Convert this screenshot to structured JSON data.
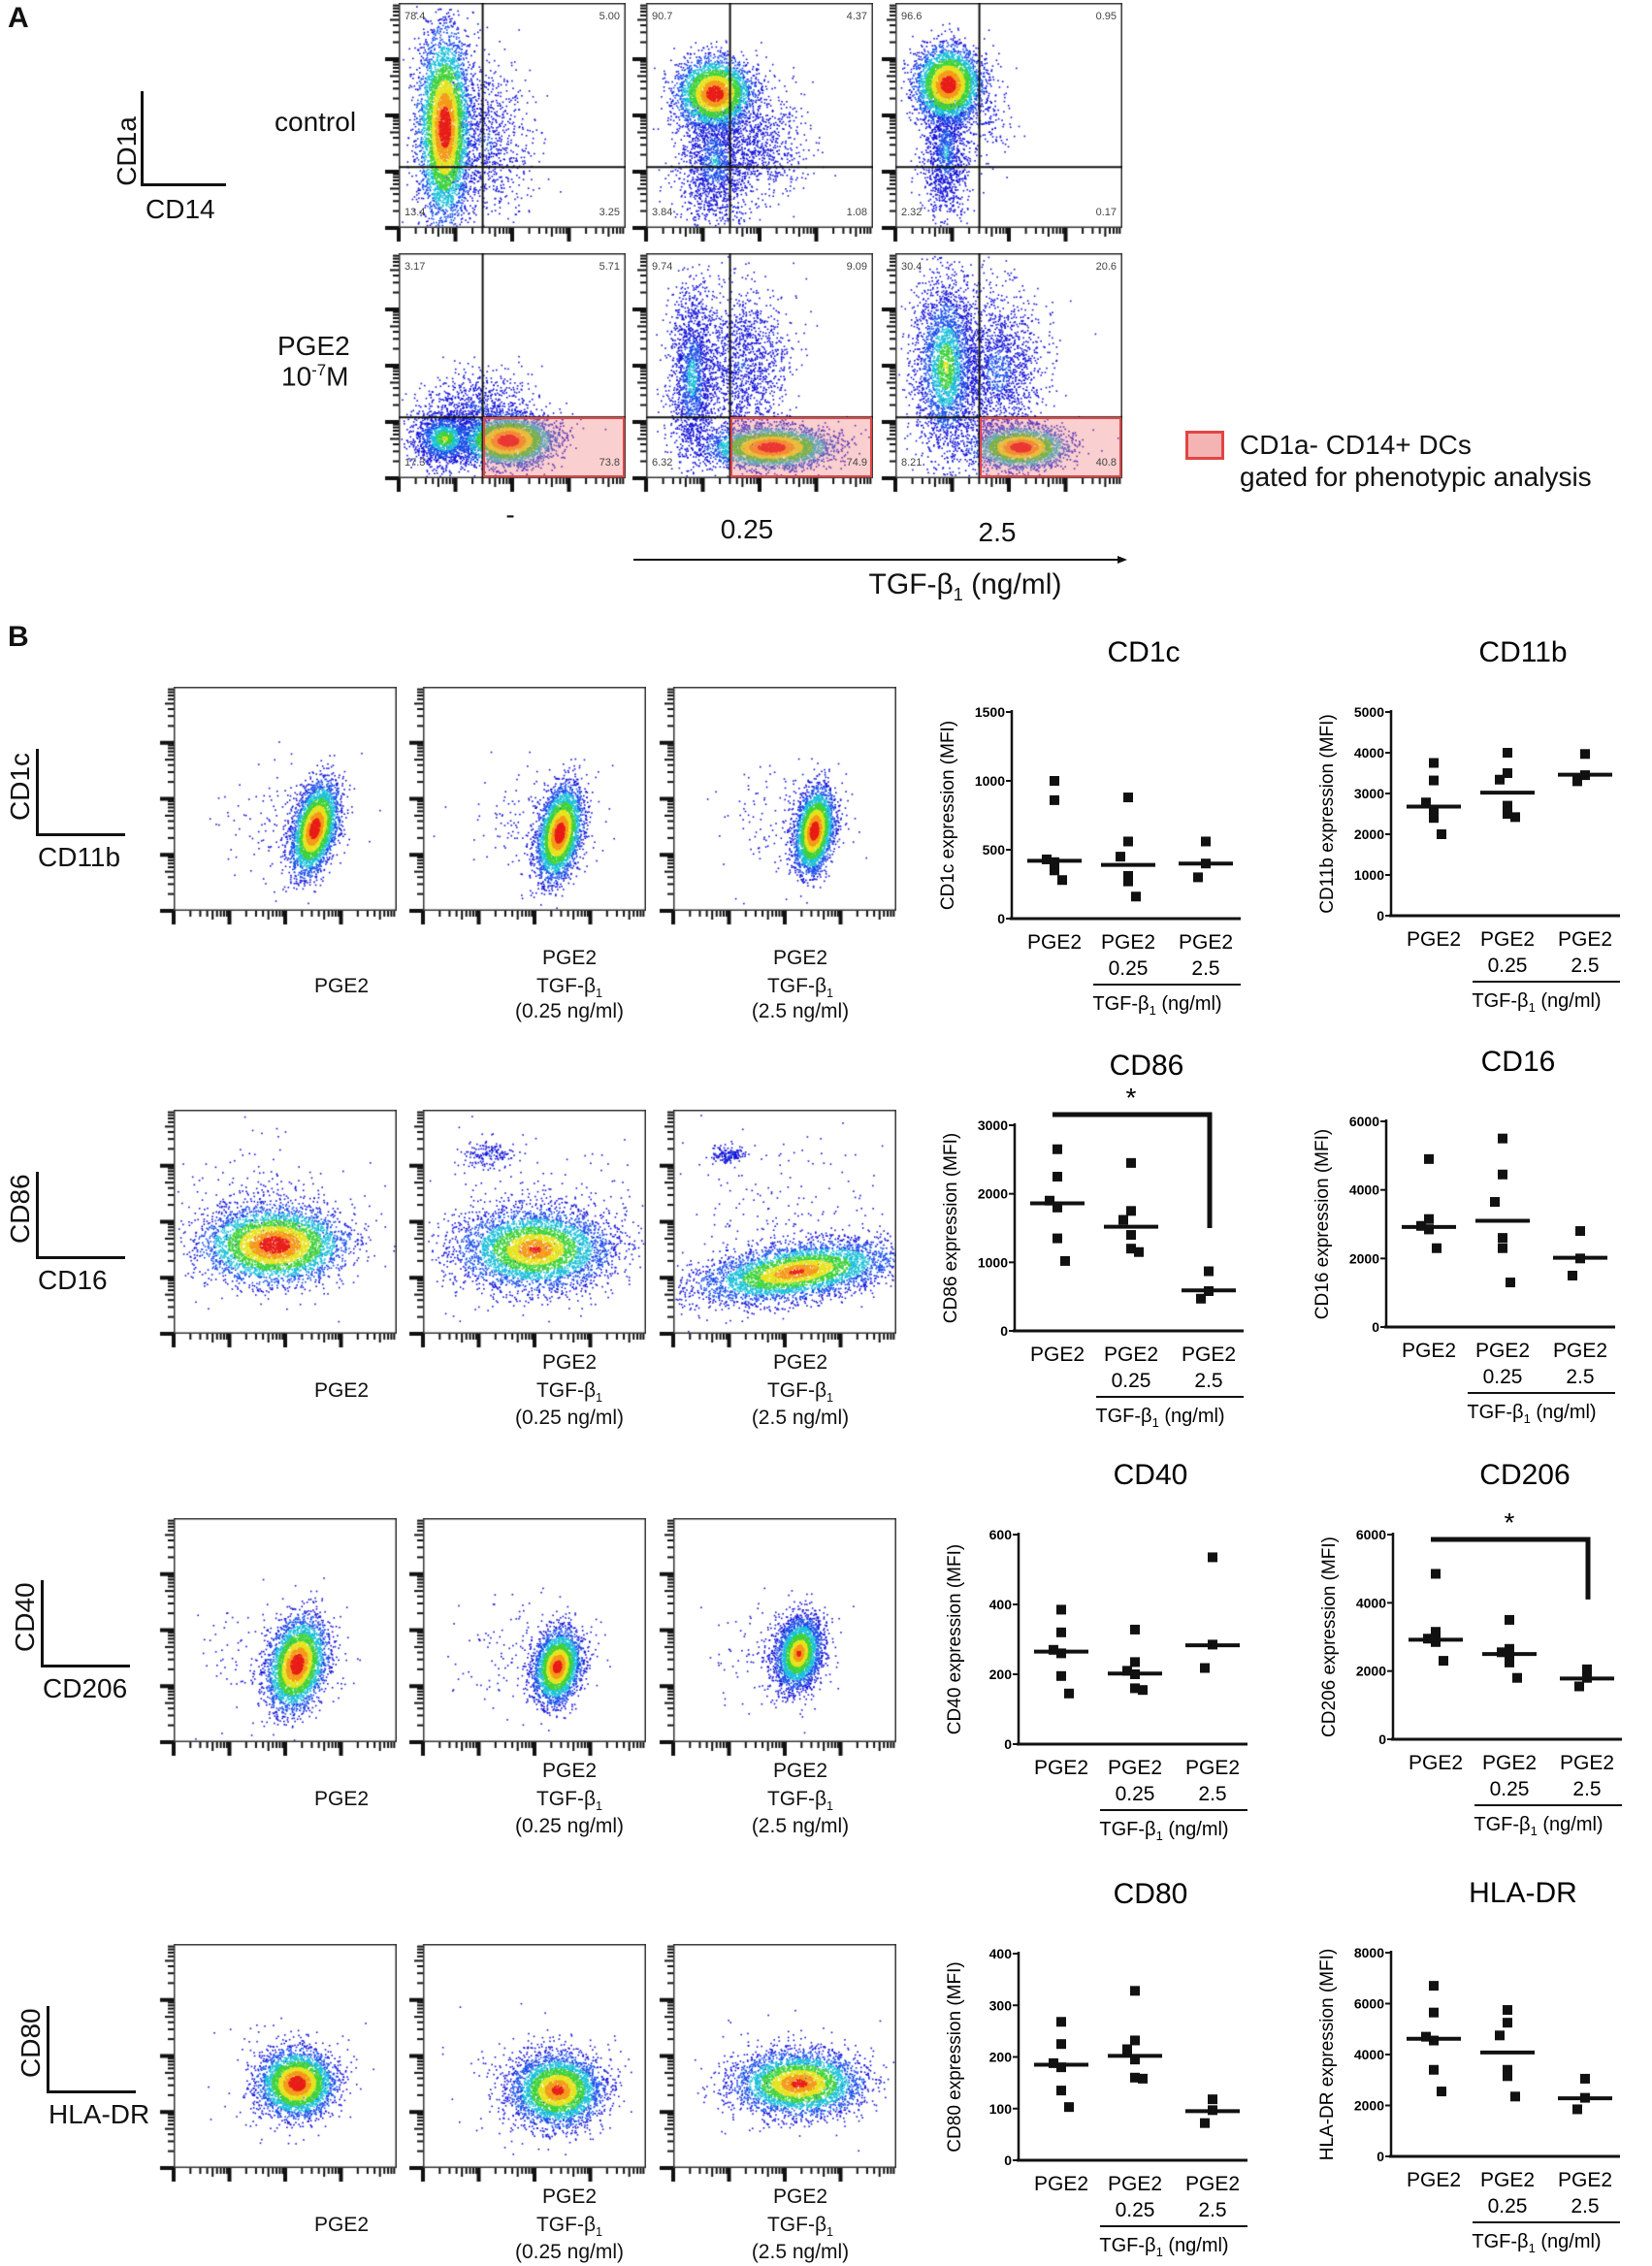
{
  "figure": {
    "panel_a_label": "A",
    "panel_b_label": "B"
  },
  "panel_a": {
    "axis_y": "CD1a",
    "axis_x": "CD14",
    "rows": [
      {
        "label": "control",
        "quadrants": [
          [
            "78.4",
            "5.00",
            "13.4",
            "3.25"
          ],
          [
            "90.7",
            "4.37",
            "3.84",
            "1.08"
          ],
          [
            "96.6",
            "0.95",
            "2.32",
            "0.17"
          ]
        ]
      },
      {
        "label": "PGE2",
        "conc_base": "10",
        "conc_exp": "-7",
        "conc_unit": "M",
        "quadrants": [
          [
            "3.17",
            "5.71",
            "17.3",
            "73.8"
          ],
          [
            "9.74",
            "9.09",
            "6.32",
            "74.9"
          ],
          [
            "30.4",
            "20.6",
            "8.21",
            "40.8"
          ]
        ]
      }
    ],
    "columns": [
      "-",
      "0.25",
      "2.5"
    ],
    "tgf": {
      "text": "TGF-β",
      "sub": "1",
      "unit": " (ng/ml)"
    },
    "legend": {
      "line1": "CD1a- CD14+ DCs",
      "line2": "gated for phenotypic analysis",
      "color": "#f4b4b4",
      "border": "#e24444"
    }
  },
  "panel_b": {
    "plot_labels": [
      {
        "l1": "PGE2"
      },
      {
        "l1": "PGE2",
        "l2": "TGF-β",
        "sub": "1",
        "l3": "(0.25 ng/ml)"
      },
      {
        "l1": "PGE2",
        "l2": "TGF-β",
        "sub": "1",
        "l3": "(2.5 ng/ml)"
      }
    ],
    "rows": [
      {
        "axis_y": "CD1c",
        "axis_x": "CD11b"
      },
      {
        "axis_y": "CD86",
        "axis_x": "CD16"
      },
      {
        "axis_y": "CD40",
        "axis_x": "CD206"
      },
      {
        "axis_y": "CD80",
        "axis_x": "HLA-DR"
      }
    ]
  },
  "chart_data": [
    {
      "type": "scatter",
      "title": "CD1c",
      "ylabel": "CD1c expression (MFI)",
      "ylim": [
        0,
        1500
      ],
      "yticks": [
        "0",
        "500",
        "1000",
        "1500"
      ],
      "categories": [
        {
          "l1": "PGE2",
          "l2": ""
        },
        {
          "l1": "PGE2",
          "l2": "0.25"
        },
        {
          "l1": "PGE2",
          "l2": "2.5"
        }
      ],
      "xgroup": {
        "text": "TGF-β",
        "sub": "1",
        "unit": " (ng/ml)"
      },
      "values": [
        [
          1000,
          860,
          430,
          410,
          350,
          280
        ],
        [
          880,
          560,
          450,
          310,
          270,
          160
        ],
        [
          560,
          400,
          300
        ]
      ],
      "medians": [
        420,
        390,
        400
      ],
      "significance": null
    },
    {
      "type": "scatter",
      "title": "CD11b",
      "ylabel": "CD11b expression (MFI)",
      "ylim": [
        0,
        5000
      ],
      "yticks": [
        "0",
        "1000",
        "2000",
        "3000",
        "4000",
        "5000"
      ],
      "categories": [
        {
          "l1": "PGE2",
          "l2": ""
        },
        {
          "l1": "PGE2",
          "l2": "0.25"
        },
        {
          "l1": "PGE2",
          "l2": "2.5"
        }
      ],
      "xgroup": {
        "text": "TGF-β",
        "sub": "1",
        "unit": " (ng/ml)"
      },
      "values": [
        [
          3750,
          3320,
          2780,
          2560,
          2400,
          2000
        ],
        [
          4000,
          3500,
          3340,
          2700,
          2500,
          2420
        ],
        [
          3970,
          3450,
          3300
        ]
      ],
      "medians": [
        2680,
        3020,
        3460
      ],
      "significance": null
    },
    {
      "type": "scatter",
      "title": "CD86",
      "ylabel": "CD86 expression (MFI)",
      "ylim": [
        0,
        3000
      ],
      "yticks": [
        "0",
        "1000",
        "2000",
        "3000"
      ],
      "categories": [
        {
          "l1": "PGE2",
          "l2": ""
        },
        {
          "l1": "PGE2",
          "l2": "0.25"
        },
        {
          "l1": "PGE2",
          "l2": "2.5"
        }
      ],
      "xgroup": {
        "text": "TGF-β",
        "sub": "1",
        "unit": " (ng/ml)"
      },
      "values": [
        [
          2650,
          2250,
          1900,
          1800,
          1350,
          1020
        ],
        [
          2450,
          1750,
          1620,
          1400,
          1200,
          1150
        ],
        [
          870,
          580,
          470
        ]
      ],
      "medians": [
        1860,
        1520,
        590
      ],
      "significance": {
        "from": 0,
        "to": 2,
        "label": "*"
      }
    },
    {
      "type": "scatter",
      "title": "CD16",
      "ylabel": "CD16 expression (MFI)",
      "ylim": [
        0,
        6000
      ],
      "yticks": [
        "0",
        "2000",
        "4000",
        "6000"
      ],
      "categories": [
        {
          "l1": "PGE2",
          "l2": ""
        },
        {
          "l1": "PGE2",
          "l2": "0.25"
        },
        {
          "l1": "PGE2",
          "l2": "2.5"
        }
      ],
      "xgroup": {
        "text": "TGF-β",
        "sub": "1",
        "unit": " (ng/ml)"
      },
      "values": [
        [
          4900,
          3150,
          2950,
          2850,
          2850,
          2300
        ],
        [
          5500,
          4450,
          3650,
          2600,
          2300,
          1300
        ],
        [
          2800,
          2000,
          1500
        ]
      ],
      "medians": [
        2920,
        3100,
        2020
      ],
      "significance": null
    },
    {
      "type": "scatter",
      "title": "CD40",
      "ylabel": "CD40 expression (MFI)",
      "ylim": [
        0,
        600
      ],
      "yticks": [
        "0",
        "200",
        "400",
        "600"
      ],
      "categories": [
        {
          "l1": "PGE2",
          "l2": ""
        },
        {
          "l1": "PGE2",
          "l2": "0.25"
        },
        {
          "l1": "PGE2",
          "l2": "2.5"
        }
      ],
      "xgroup": {
        "text": "TGF-β",
        "sub": "1",
        "unit": " (ng/ml)"
      },
      "values": [
        [
          385,
          320,
          270,
          260,
          195,
          145
        ],
        [
          328,
          235,
          210,
          200,
          160,
          155
        ],
        [
          535,
          285,
          218
        ]
      ],
      "medians": [
        265,
        202,
        283
      ],
      "significance": null
    },
    {
      "type": "scatter",
      "title": "CD206",
      "ylabel": "CD206 expression (MFI)",
      "ylim": [
        0,
        6000
      ],
      "yticks": [
        "0",
        "2000",
        "4000",
        "6000"
      ],
      "categories": [
        {
          "l1": "PGE2",
          "l2": ""
        },
        {
          "l1": "PGE2",
          "l2": "0.25"
        },
        {
          "l1": "PGE2",
          "l2": "2.5"
        }
      ],
      "xgroup": {
        "text": "TGF-β",
        "sub": "1",
        "unit": " (ng/ml)"
      },
      "values": [
        [
          4850,
          3150,
          2950,
          2850,
          2900,
          2300
        ],
        [
          3500,
          2650,
          2550,
          2450,
          2250,
          1800
        ],
        [
          2050,
          1800,
          1550
        ]
      ],
      "medians": [
        2920,
        2500,
        1780
      ],
      "significance": {
        "from": 0,
        "to": 2,
        "label": "*"
      }
    },
    {
      "type": "scatter",
      "title": "CD80",
      "ylabel": "CD80 expression (MFI)",
      "ylim": [
        0,
        400
      ],
      "yticks": [
        "0",
        "100",
        "200",
        "300",
        "400"
      ],
      "categories": [
        {
          "l1": "PGE2",
          "l2": ""
        },
        {
          "l1": "PGE2",
          "l2": "0.25"
        },
        {
          "l1": "PGE2",
          "l2": "2.5"
        }
      ],
      "xgroup": {
        "text": "TGF-β",
        "sub": "1",
        "unit": " (ng/ml)"
      },
      "values": [
        [
          268,
          225,
          188,
          180,
          135,
          103
        ],
        [
          328,
          232,
          215,
          195,
          160,
          158
        ],
        [
          118,
          97,
          72
        ]
      ],
      "medians": [
        185,
        202,
        95
      ],
      "significance": null
    },
    {
      "type": "scatter",
      "title": "HLA-DR",
      "ylabel": "HLA-DR expression (MFI)",
      "ylim": [
        0,
        8000
      ],
      "yticks": [
        "0",
        "2000",
        "4000",
        "6000",
        "8000"
      ],
      "categories": [
        {
          "l1": "PGE2",
          "l2": ""
        },
        {
          "l1": "PGE2",
          "l2": "0.25"
        },
        {
          "l1": "PGE2",
          "l2": "2.5"
        }
      ],
      "xgroup": {
        "text": "TGF-β",
        "sub": "1",
        "unit": " (ng/ml)"
      },
      "values": [
        [
          6700,
          5650,
          4700,
          4550,
          3400,
          2550
        ],
        [
          5750,
          5250,
          4750,
          3400,
          3150,
          2350
        ],
        [
          3050,
          2300,
          1850
        ]
      ],
      "medians": [
        4620,
        4080,
        2280
      ],
      "significance": null
    }
  ]
}
